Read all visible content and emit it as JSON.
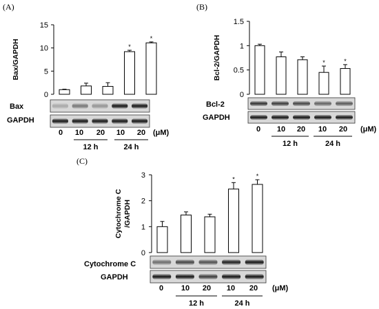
{
  "figure_labels": {
    "a": "(A)",
    "b": "(B)",
    "c": "(C)"
  },
  "x_axis": {
    "control": "0",
    "doses": [
      "10",
      "20",
      "10",
      "20"
    ],
    "unit": "(μM)",
    "time_groups": [
      "12 h",
      "24 h"
    ]
  },
  "blots": {
    "a": [
      "Bax",
      "GAPDH"
    ],
    "b": [
      "Bcl-2",
      "GAPDH"
    ],
    "c": [
      "Cytochrome C",
      "GAPDH"
    ]
  },
  "chart_data": [
    {
      "panel": "(A)",
      "type": "bar",
      "ylabel": "Bax/GAPDH",
      "categories": [
        "0",
        "10 (12 h)",
        "20 (12 h)",
        "10 (24 h)",
        "20 (24 h)"
      ],
      "values": [
        1.0,
        1.8,
        1.7,
        9.2,
        11.1
      ],
      "errors": [
        0.1,
        0.6,
        0.8,
        0.3,
        0.2
      ],
      "significant": [
        false,
        false,
        false,
        true,
        true
      ],
      "yticks": [
        "0",
        "5",
        "10",
        "15"
      ],
      "ylim": [
        0,
        15
      ],
      "bar_color": "#ffffff",
      "grid": false
    },
    {
      "panel": "(B)",
      "type": "bar",
      "ylabel": "Bcl-2/GAPDH",
      "categories": [
        "0",
        "10 (12 h)",
        "20 (12 h)",
        "10 (24 h)",
        "20 (24 h)"
      ],
      "values": [
        1.0,
        0.77,
        0.71,
        0.45,
        0.53
      ],
      "errors": [
        0.03,
        0.1,
        0.06,
        0.13,
        0.08
      ],
      "significant": [
        false,
        false,
        false,
        true,
        true
      ],
      "yticks": [
        "0",
        "0.5",
        "1",
        "1.5"
      ],
      "ylim": [
        0,
        1.5
      ],
      "bar_color": "#ffffff",
      "grid": false
    },
    {
      "panel": "(C)",
      "type": "bar",
      "ylabel": "Cytochrome C /GAPDH",
      "categories": [
        "0",
        "10 (12 h)",
        "20 (12 h)",
        "10 (24 h)",
        "20 (24 h)"
      ],
      "values": [
        1.0,
        1.45,
        1.38,
        2.45,
        2.63
      ],
      "errors": [
        0.2,
        0.12,
        0.1,
        0.25,
        0.18
      ],
      "significant": [
        false,
        false,
        false,
        true,
        true
      ],
      "yticks": [
        "0",
        "1",
        "2",
        "3"
      ],
      "ylim": [
        0,
        3
      ],
      "bar_color": "#ffffff",
      "grid": false
    }
  ],
  "significance_marker": "*"
}
